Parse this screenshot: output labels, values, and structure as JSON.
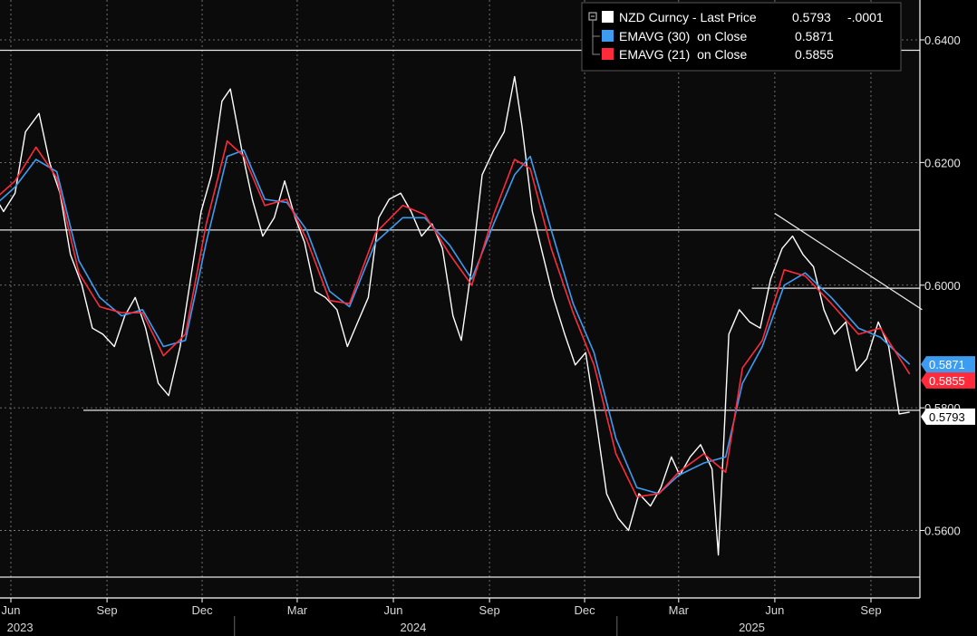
{
  "chart_data": {
    "type": "line",
    "ylim": [
      0.549,
      0.6465
    ],
    "y_ticks": [
      {
        "value": 0.64,
        "label": "0.6400"
      },
      {
        "value": 0.62,
        "label": "0.6200"
      },
      {
        "value": 0.6,
        "label": "0.6000"
      },
      {
        "value": 0.58,
        "label": "0.5800"
      },
      {
        "value": 0.56,
        "label": "0.5600"
      }
    ],
    "x_months": [
      "Jun",
      "Sep",
      "Dec",
      "Mar",
      "Jun",
      "Sep",
      "Dec",
      "Mar",
      "Jun",
      "Sep"
    ],
    "x_years": [
      "2023",
      "2024",
      "2025"
    ],
    "legend": [
      {
        "swatch": "#ffffff",
        "label": "NZD Curncy - Last Price",
        "value": "0.5793",
        "change": "-.0001"
      },
      {
        "swatch": "#3d9cf0",
        "label": "EMAVG (30)  on Close",
        "value": "0.5871"
      },
      {
        "swatch": "#ff2a3a",
        "label": "EMAVG (21)  on Close",
        "value": "0.5855"
      }
    ],
    "last_labels": [
      {
        "text": "0.5871",
        "series": "ema30"
      },
      {
        "text": "0.5855",
        "series": "ema21"
      },
      {
        "text": "0.5793",
        "series": "price"
      }
    ],
    "colors": {
      "price": "#ffffff",
      "ema30": "#3d9cf0",
      "ema21": "#ff2a3a",
      "grid": "#8a8a8a",
      "annotation": "#e6e6e6"
    },
    "annotations": {
      "horizontal_levels": [
        0.6383,
        0.609,
        0.5995,
        0.5796,
        0.5524
      ],
      "trendline": {
        "from": [
          "2025-06-01",
          0.6117
        ],
        "to": [
          "2025-10-20",
          0.596
        ]
      }
    },
    "series": [
      {
        "name": "NZD Curncy - Last Price",
        "key": "price",
        "points": [
          [
            "2023-04-15",
            0.6
          ],
          [
            "2023-04-25",
            0.612
          ],
          [
            "2023-05-05",
            0.62
          ],
          [
            "2023-05-15",
            0.615
          ],
          [
            "2023-05-25",
            0.612
          ],
          [
            "2023-06-05",
            0.615
          ],
          [
            "2023-06-15",
            0.625
          ],
          [
            "2023-06-28",
            0.628
          ],
          [
            "2023-07-08",
            0.62
          ],
          [
            "2023-07-18",
            0.615
          ],
          [
            "2023-07-28",
            0.605
          ],
          [
            "2023-08-08",
            0.6
          ],
          [
            "2023-08-18",
            0.593
          ],
          [
            "2023-08-28",
            0.592
          ],
          [
            "2023-09-08",
            0.59
          ],
          [
            "2023-09-18",
            0.595
          ],
          [
            "2023-09-28",
            0.598
          ],
          [
            "2023-10-08",
            0.593
          ],
          [
            "2023-10-20",
            0.584
          ],
          [
            "2023-10-30",
            0.582
          ],
          [
            "2023-11-10",
            0.59
          ],
          [
            "2023-11-20",
            0.601
          ],
          [
            "2023-11-30",
            0.612
          ],
          [
            "2023-12-10",
            0.618
          ],
          [
            "2023-12-20",
            0.63
          ],
          [
            "2023-12-28",
            0.632
          ],
          [
            "2024-01-08",
            0.622
          ],
          [
            "2024-01-18",
            0.614
          ],
          [
            "2024-01-28",
            0.608
          ],
          [
            "2024-02-08",
            0.611
          ],
          [
            "2024-02-18",
            0.617
          ],
          [
            "2024-02-28",
            0.611
          ],
          [
            "2024-03-08",
            0.607
          ],
          [
            "2024-03-18",
            0.599
          ],
          [
            "2024-03-28",
            0.598
          ],
          [
            "2024-04-08",
            0.596
          ],
          [
            "2024-04-18",
            0.59
          ],
          [
            "2024-04-28",
            0.594
          ],
          [
            "2024-05-08",
            0.598
          ],
          [
            "2024-05-18",
            0.611
          ],
          [
            "2024-05-28",
            0.614
          ],
          [
            "2024-06-08",
            0.615
          ],
          [
            "2024-06-18",
            0.612
          ],
          [
            "2024-06-28",
            0.608
          ],
          [
            "2024-07-08",
            0.61
          ],
          [
            "2024-07-18",
            0.606
          ],
          [
            "2024-07-28",
            0.595
          ],
          [
            "2024-08-05",
            0.591
          ],
          [
            "2024-08-15",
            0.603
          ],
          [
            "2024-08-25",
            0.618
          ],
          [
            "2024-09-05",
            0.622
          ],
          [
            "2024-09-15",
            0.625
          ],
          [
            "2024-09-25",
            0.634
          ],
          [
            "2024-10-02",
            0.626
          ],
          [
            "2024-10-12",
            0.612
          ],
          [
            "2024-10-22",
            0.605
          ],
          [
            "2024-11-01",
            0.598
          ],
          [
            "2024-11-12",
            0.592
          ],
          [
            "2024-11-22",
            0.587
          ],
          [
            "2024-12-02",
            0.589
          ],
          [
            "2024-12-12",
            0.578
          ],
          [
            "2024-12-22",
            0.566
          ],
          [
            "2025-01-02",
            0.562
          ],
          [
            "2025-01-12",
            0.56
          ],
          [
            "2025-01-22",
            0.566
          ],
          [
            "2025-02-02",
            0.564
          ],
          [
            "2025-02-12",
            0.567
          ],
          [
            "2025-02-22",
            0.572
          ],
          [
            "2025-03-02",
            0.569
          ],
          [
            "2025-03-12",
            0.572
          ],
          [
            "2025-03-22",
            0.574
          ],
          [
            "2025-04-02",
            0.57
          ],
          [
            "2025-04-08",
            0.556
          ],
          [
            "2025-04-18",
            0.592
          ],
          [
            "2025-04-28",
            0.596
          ],
          [
            "2025-05-08",
            0.594
          ],
          [
            "2025-05-18",
            0.593
          ],
          [
            "2025-05-28",
            0.601
          ],
          [
            "2025-06-08",
            0.606
          ],
          [
            "2025-06-18",
            0.608
          ],
          [
            "2025-06-28",
            0.605
          ],
          [
            "2025-07-08",
            0.603
          ],
          [
            "2025-07-18",
            0.596
          ],
          [
            "2025-07-28",
            0.592
          ],
          [
            "2025-08-08",
            0.594
          ],
          [
            "2025-08-18",
            0.586
          ],
          [
            "2025-08-28",
            0.588
          ],
          [
            "2025-09-08",
            0.594
          ],
          [
            "2025-09-18",
            0.59
          ],
          [
            "2025-09-28",
            0.579
          ],
          [
            "2025-10-08",
            0.5793
          ]
        ]
      },
      {
        "name": "EMAVG (30)  on Close",
        "key": "ema30",
        "points": [
          [
            "2023-04-15",
            0.608
          ],
          [
            "2023-05-10",
            0.612
          ],
          [
            "2023-06-05",
            0.616
          ],
          [
            "2023-06-25",
            0.6205
          ],
          [
            "2023-07-15",
            0.6185
          ],
          [
            "2023-08-05",
            0.604
          ],
          [
            "2023-08-25",
            0.598
          ],
          [
            "2023-09-15",
            0.595
          ],
          [
            "2023-10-05",
            0.596
          ],
          [
            "2023-10-25",
            0.59
          ],
          [
            "2023-11-15",
            0.591
          ],
          [
            "2023-12-05",
            0.607
          ],
          [
            "2023-12-25",
            0.621
          ],
          [
            "2024-01-10",
            0.622
          ],
          [
            "2024-01-30",
            0.614
          ],
          [
            "2024-02-20",
            0.6135
          ],
          [
            "2024-03-10",
            0.609
          ],
          [
            "2024-04-01",
            0.599
          ],
          [
            "2024-04-20",
            0.5965
          ],
          [
            "2024-05-15",
            0.607
          ],
          [
            "2024-06-10",
            0.611
          ],
          [
            "2024-07-01",
            0.611
          ],
          [
            "2024-07-25",
            0.6065
          ],
          [
            "2024-08-15",
            0.601
          ],
          [
            "2024-09-05",
            0.61
          ],
          [
            "2024-09-25",
            0.618
          ],
          [
            "2024-10-10",
            0.621
          ],
          [
            "2024-10-30",
            0.609
          ],
          [
            "2024-11-20",
            0.597
          ],
          [
            "2024-12-10",
            0.589
          ],
          [
            "2024-12-31",
            0.575
          ],
          [
            "2025-01-20",
            0.567
          ],
          [
            "2025-02-10",
            0.566
          ],
          [
            "2025-03-01",
            0.569
          ],
          [
            "2025-03-25",
            0.571
          ],
          [
            "2025-04-15",
            0.572
          ],
          [
            "2025-05-01",
            0.584
          ],
          [
            "2025-05-20",
            0.59
          ],
          [
            "2025-06-10",
            0.6
          ],
          [
            "2025-06-30",
            0.602
          ],
          [
            "2025-07-25",
            0.598
          ],
          [
            "2025-08-20",
            0.593
          ],
          [
            "2025-09-10",
            0.5915
          ],
          [
            "2025-10-08",
            0.5871
          ]
        ]
      },
      {
        "name": "EMAVG (21)  on Close",
        "key": "ema21",
        "points": [
          [
            "2023-04-15",
            0.609
          ],
          [
            "2023-05-10",
            0.613
          ],
          [
            "2023-06-05",
            0.617
          ],
          [
            "2023-06-25",
            0.6225
          ],
          [
            "2023-07-15",
            0.6175
          ],
          [
            "2023-08-05",
            0.602
          ],
          [
            "2023-08-25",
            0.5965
          ],
          [
            "2023-09-15",
            0.5955
          ],
          [
            "2023-10-05",
            0.5955
          ],
          [
            "2023-10-25",
            0.5885
          ],
          [
            "2023-11-15",
            0.592
          ],
          [
            "2023-12-05",
            0.61
          ],
          [
            "2023-12-25",
            0.6235
          ],
          [
            "2024-01-10",
            0.621
          ],
          [
            "2024-01-30",
            0.613
          ],
          [
            "2024-02-20",
            0.614
          ],
          [
            "2024-03-10",
            0.6075
          ],
          [
            "2024-04-01",
            0.5975
          ],
          [
            "2024-04-20",
            0.597
          ],
          [
            "2024-05-15",
            0.6085
          ],
          [
            "2024-06-10",
            0.613
          ],
          [
            "2024-07-01",
            0.6115
          ],
          [
            "2024-07-25",
            0.605
          ],
          [
            "2024-08-15",
            0.6
          ],
          [
            "2024-09-05",
            0.6115
          ],
          [
            "2024-09-25",
            0.6205
          ],
          [
            "2024-10-10",
            0.619
          ],
          [
            "2024-10-30",
            0.606
          ],
          [
            "2024-11-20",
            0.5955
          ],
          [
            "2024-12-10",
            0.587
          ],
          [
            "2024-12-31",
            0.5725
          ],
          [
            "2025-01-20",
            0.5655
          ],
          [
            "2025-02-10",
            0.566
          ],
          [
            "2025-03-01",
            0.5695
          ],
          [
            "2025-03-25",
            0.5725
          ],
          [
            "2025-04-15",
            0.5695
          ],
          [
            "2025-05-01",
            0.5865
          ],
          [
            "2025-05-20",
            0.591
          ],
          [
            "2025-06-10",
            0.6025
          ],
          [
            "2025-06-30",
            0.6015
          ],
          [
            "2025-07-25",
            0.597
          ],
          [
            "2025-08-20",
            0.592
          ],
          [
            "2025-09-10",
            0.593
          ],
          [
            "2025-10-08",
            0.5855
          ]
        ]
      }
    ]
  }
}
